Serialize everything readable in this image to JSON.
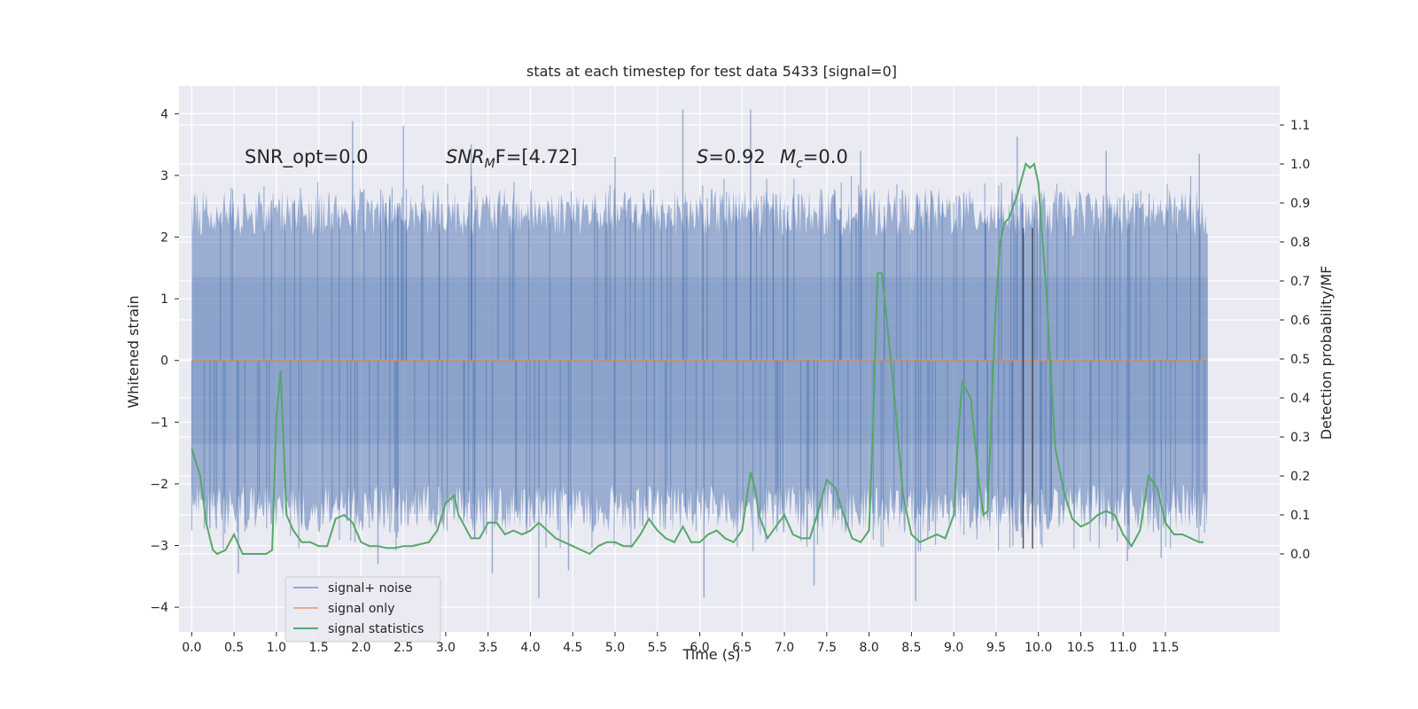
{
  "chart_data": {
    "type": "line",
    "title": "stats at each timestep for test data 5433 [signal=0]",
    "xlabel": "Time (s)",
    "ylabel_left": "Whitened strain",
    "ylabel_right": "Detection probability/MF",
    "xlim": [
      -0.15,
      12.85
    ],
    "ylim_left": [
      -4.4,
      4.45
    ],
    "ylim_right": [
      -0.2,
      1.2
    ],
    "x_ticks": [
      0.0,
      0.5,
      1.0,
      1.5,
      2.0,
      2.5,
      3.0,
      3.5,
      4.0,
      4.5,
      5.0,
      5.5,
      6.0,
      6.5,
      7.0,
      7.5,
      8.0,
      8.5,
      9.0,
      9.5,
      10.0,
      10.5,
      11.0,
      11.5
    ],
    "x_tick_labels": [
      "0.0",
      "0.5",
      "1.0",
      "1.5",
      "2.0",
      "2.5",
      "3.0",
      "3.5",
      "4.0",
      "4.5",
      "5.0",
      "5.5",
      "6.0",
      "6.5",
      "7.0",
      "7.5",
      "8.0",
      "8.5",
      "9.0",
      "9.5",
      "10.0",
      "10.5",
      "11.0",
      "11.5"
    ],
    "y_ticks_left": [
      -4,
      -3,
      -2,
      -1,
      0,
      1,
      2,
      3,
      4
    ],
    "y_tick_labels_left": [
      "−4",
      "−3",
      "−2",
      "−1",
      "0",
      "1",
      "2",
      "3",
      "4"
    ],
    "y_ticks_right": [
      0.0,
      0.1,
      0.2,
      0.3,
      0.4,
      0.5,
      0.6,
      0.7,
      0.8,
      0.9,
      1.0,
      1.1
    ],
    "y_tick_labels_right": [
      "0.0",
      "0.1",
      "0.2",
      "0.3",
      "0.4",
      "0.5",
      "0.6",
      "0.7",
      "0.8",
      "0.9",
      "1.0",
      "1.1"
    ],
    "grid": true,
    "legend_position": "lower-left",
    "annotations": {
      "snr_opt": "SNR_opt=0.0",
      "snr_mf_main": "SNR",
      "snr_mf_sub": "M",
      "snr_mf_tail": "F=[4.72]",
      "s_var": "S",
      "s_val": "=0.92",
      "mc_var": "M",
      "mc_sub": "c",
      "mc_val": "=0.0"
    },
    "colors": {
      "background": "#eaeaf2",
      "grid": "#ffffff",
      "noise": "#4c72b0",
      "signal_only": "#dd8452",
      "statistics": "#55a868",
      "marker": "#333333"
    },
    "series": [
      {
        "name": "signal+ noise",
        "axis": "left",
        "style": "dense-noise",
        "t_start": 0.0,
        "t_end": 12.0,
        "core_amplitude": 1.35,
        "envelope_low": -2.0,
        "envelope_high": 2.0,
        "peaks": [
          {
            "t": 0.55,
            "v": -3.45
          },
          {
            "t": 1.9,
            "v": 3.88
          },
          {
            "t": 2.5,
            "v": 3.8
          },
          {
            "t": 3.3,
            "v": 3.5
          },
          {
            "t": 3.55,
            "v": -3.45
          },
          {
            "t": 4.1,
            "v": -3.85
          },
          {
            "t": 4.45,
            "v": -3.4
          },
          {
            "t": 5.8,
            "v": 4.07
          },
          {
            "t": 6.05,
            "v": -3.85
          },
          {
            "t": 6.6,
            "v": 4.07
          },
          {
            "t": 7.35,
            "v": -3.65
          },
          {
            "t": 8.55,
            "v": -3.9
          },
          {
            "t": 9.75,
            "v": 3.63
          },
          {
            "t": 11.05,
            "v": -3.25
          },
          {
            "t": 11.45,
            "v": -3.2
          },
          {
            "t": 11.9,
            "v": 3.35
          },
          {
            "t": 10.8,
            "v": 3.4
          },
          {
            "t": 7.9,
            "v": 3.4
          },
          {
            "t": 5.0,
            "v": 3.3
          },
          {
            "t": 2.2,
            "v": -3.3
          }
        ]
      },
      {
        "name": "signal only",
        "axis": "left",
        "x": [
          0.0,
          12.0
        ],
        "y": [
          0.0,
          0.0
        ]
      },
      {
        "name": "signal statistics",
        "axis": "right",
        "x": [
          0.0,
          0.1,
          0.13,
          0.17,
          0.25,
          0.3,
          0.4,
          0.5,
          0.6,
          0.7,
          0.8,
          0.88,
          0.95,
          1.0,
          1.05,
          1.12,
          1.2,
          1.3,
          1.4,
          1.5,
          1.6,
          1.7,
          1.8,
          1.9,
          2.0,
          2.1,
          2.2,
          2.3,
          2.4,
          2.5,
          2.6,
          2.7,
          2.8,
          2.9,
          3.0,
          3.1,
          3.15,
          3.2,
          3.3,
          3.4,
          3.5,
          3.6,
          3.7,
          3.8,
          3.9,
          4.0,
          4.1,
          4.2,
          4.3,
          4.4,
          4.5,
          4.6,
          4.7,
          4.8,
          4.9,
          5.0,
          5.1,
          5.2,
          5.3,
          5.4,
          5.5,
          5.6,
          5.7,
          5.8,
          5.9,
          6.0,
          6.1,
          6.2,
          6.3,
          6.4,
          6.5,
          6.6,
          6.65,
          6.7,
          6.8,
          6.9,
          7.0,
          7.1,
          7.2,
          7.3,
          7.4,
          7.5,
          7.6,
          7.7,
          7.8,
          7.9,
          8.0,
          8.05,
          8.1,
          8.15,
          8.2,
          8.3,
          8.4,
          8.5,
          8.6,
          8.7,
          8.8,
          8.9,
          9.0,
          9.05,
          9.1,
          9.2,
          9.3,
          9.35,
          9.4,
          9.45,
          9.5,
          9.55,
          9.6,
          9.65,
          9.7,
          9.75,
          9.8,
          9.85,
          9.9,
          9.95,
          10.0,
          10.05,
          10.1,
          10.15,
          10.2,
          10.3,
          10.4,
          10.5,
          10.6,
          10.7,
          10.8,
          10.9,
          11.0,
          11.1,
          11.2,
          11.3,
          11.4,
          11.5,
          11.6,
          11.7,
          11.8,
          11.9,
          11.95
        ],
        "y": [
          0.27,
          0.2,
          0.15,
          0.08,
          0.01,
          0.0,
          0.01,
          0.05,
          0.0,
          0.0,
          0.0,
          0.0,
          0.01,
          0.35,
          0.47,
          0.1,
          0.06,
          0.03,
          0.03,
          0.02,
          0.02,
          0.09,
          0.1,
          0.08,
          0.03,
          0.02,
          0.02,
          0.015,
          0.015,
          0.02,
          0.02,
          0.025,
          0.03,
          0.06,
          0.13,
          0.15,
          0.1,
          0.08,
          0.04,
          0.04,
          0.08,
          0.08,
          0.05,
          0.06,
          0.05,
          0.06,
          0.08,
          0.06,
          0.04,
          0.03,
          0.02,
          0.01,
          0.0,
          0.02,
          0.03,
          0.03,
          0.02,
          0.02,
          0.05,
          0.09,
          0.06,
          0.04,
          0.03,
          0.07,
          0.03,
          0.03,
          0.05,
          0.06,
          0.04,
          0.03,
          0.06,
          0.21,
          0.17,
          0.1,
          0.04,
          0.07,
          0.1,
          0.05,
          0.04,
          0.04,
          0.11,
          0.19,
          0.17,
          0.1,
          0.04,
          0.03,
          0.06,
          0.35,
          0.72,
          0.72,
          0.62,
          0.4,
          0.15,
          0.05,
          0.03,
          0.04,
          0.05,
          0.04,
          0.1,
          0.3,
          0.44,
          0.4,
          0.18,
          0.1,
          0.11,
          0.4,
          0.65,
          0.8,
          0.85,
          0.86,
          0.89,
          0.92,
          0.96,
          1.0,
          0.99,
          1.0,
          0.95,
          0.8,
          0.65,
          0.45,
          0.27,
          0.16,
          0.09,
          0.07,
          0.08,
          0.1,
          0.11,
          0.1,
          0.05,
          0.02,
          0.06,
          0.2,
          0.17,
          0.08,
          0.05,
          0.05,
          0.04,
          0.03,
          0.03
        ]
      }
    ],
    "markers": [
      {
        "x": 9.82,
        "y_range": [
          -3.05,
          2.15
        ]
      },
      {
        "x": 9.93,
        "y_range": [
          -3.05,
          2.15
        ]
      }
    ],
    "legend": [
      {
        "label": "signal+ noise",
        "color": "#4c72b0"
      },
      {
        "label": "signal only",
        "color": "#dd8452"
      },
      {
        "label": "signal statistics",
        "color": "#55a868"
      }
    ]
  }
}
